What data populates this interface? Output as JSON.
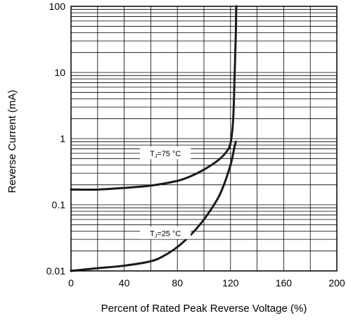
{
  "chart_data": {
    "type": "line",
    "xlabel": "Percent of Rated Peak Reverse Voltage (%)",
    "ylabel": "Reverse Current (mA)",
    "xlim": [
      0,
      200
    ],
    "ylim": [
      0.01,
      100
    ],
    "yscale": "log",
    "x_ticks": [
      0,
      40,
      80,
      120,
      160,
      200
    ],
    "x_tick_labels": [
      "0",
      "40",
      "80",
      "120",
      "160",
      "200"
    ],
    "y_ticks": [
      0.01,
      0.1,
      1,
      10,
      100
    ],
    "y_tick_labels": [
      "0.01",
      "0.1",
      "1",
      "10",
      "100"
    ],
    "grid": true,
    "series": [
      {
        "name": "TJ=75 °C",
        "label_parts": {
          "main": "T",
          "sub": "J",
          "rest": "=75 °C"
        },
        "label_at": [
          71,
          0.58
        ],
        "x": [
          0,
          20,
          40,
          60,
          80,
          90,
          100,
          110,
          116,
          120,
          122,
          123,
          124,
          124.2,
          124.4
        ],
        "y": [
          0.17,
          0.17,
          0.18,
          0.195,
          0.23,
          0.27,
          0.34,
          0.46,
          0.6,
          0.85,
          2,
          8,
          40,
          80,
          100
        ]
      },
      {
        "name": "TJ=25 °C",
        "label_parts": {
          "main": "T",
          "sub": "J",
          "rest": "=25 °C"
        },
        "label_at": [
          71,
          0.036
        ],
        "x": [
          0,
          20,
          40,
          60,
          70,
          80,
          90,
          100,
          110,
          115,
          120,
          122,
          123,
          124
        ],
        "y": [
          0.01,
          0.011,
          0.012,
          0.014,
          0.017,
          0.023,
          0.035,
          0.06,
          0.12,
          0.2,
          0.4,
          0.6,
          0.75,
          0.9
        ]
      }
    ]
  }
}
